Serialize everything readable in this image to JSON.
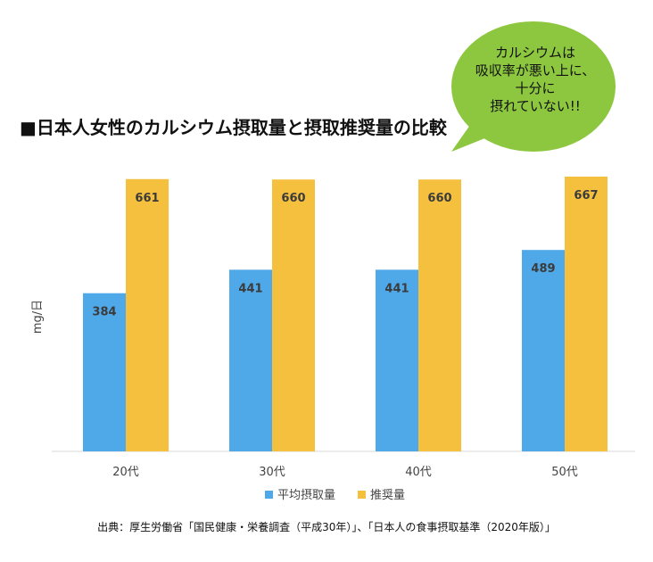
{
  "title": "■日本人女性のカルシウム摂取量と摂取推奨量の比較",
  "bubble": {
    "lines": [
      "カルシウムは",
      "吸収率が悪い上に、",
      "十分に",
      "摂れていない!!"
    ],
    "color": "#8dc73f"
  },
  "source": "出典：厚生労働省「国民健康・栄養調査（平成30年）」、「日本人の食事摂取基準（2020年版）」",
  "chart_data": {
    "type": "bar",
    "categories": [
      "20代",
      "30代",
      "40代",
      "50代"
    ],
    "series": [
      {
        "name": "平均摂取量",
        "values": [
          384,
          441,
          441,
          489
        ],
        "color": "#4fa8e8"
      },
      {
        "name": "推奨量",
        "values": [
          661,
          660,
          660,
          667
        ],
        "color": "#f4c03d"
      }
    ],
    "ylabel": "mg/日",
    "ylim": [
      0,
      680
    ],
    "grid": false,
    "legend": "bottom"
  }
}
